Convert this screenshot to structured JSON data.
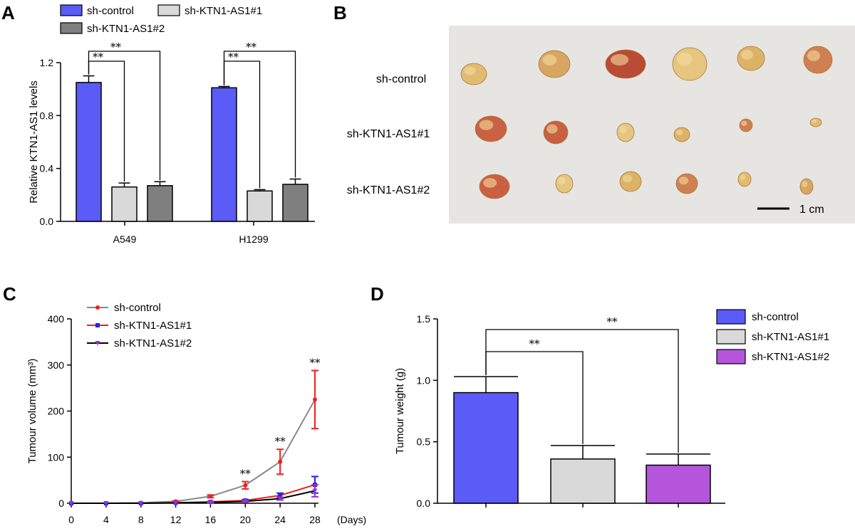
{
  "panels": {
    "A": "A",
    "B": "B",
    "C": "C",
    "D": "D"
  },
  "colors": {
    "sh_control_bar": "#5b5bf7",
    "sh1_bar": "#d9d9d9",
    "sh2_bar_A": "#7f7f7f",
    "sh2_bar_D": "#b455dc",
    "line_control": "#888888",
    "line_sh1": "#ee2020",
    "line_sh2": "#000000",
    "marker_sh1": "#2222ee",
    "marker_sh2": "#9933cc"
  },
  "panel_b": {
    "rows": [
      "sh-control",
      "sh-KTN1-AS1#1",
      "sh-KTN1-AS1#2"
    ],
    "scale_label": "1 cm"
  },
  "chart_data": [
    {
      "panel": "A",
      "type": "bar",
      "title": "",
      "ylabel": "Relative KTN1-AS1 levels",
      "xlabel": "",
      "ylim": [
        0,
        1.2
      ],
      "yticks": [
        "0.0",
        "0.4",
        "0.8",
        "1.2"
      ],
      "categories": [
        "A549",
        "H1299"
      ],
      "series": [
        {
          "name": "sh-control",
          "values": [
            1.05,
            1.01
          ],
          "errors": [
            0.05,
            0.01
          ]
        },
        {
          "name": "sh-KTN1-AS1#1",
          "values": [
            0.26,
            0.23
          ],
          "errors": [
            0.03,
            0.01
          ]
        },
        {
          "name": "sh-KTN1-AS1#2",
          "values": [
            0.27,
            0.28
          ],
          "errors": [
            0.03,
            0.04
          ]
        }
      ],
      "significance": [
        "**",
        "**",
        "**",
        "**"
      ],
      "legend_position": "top"
    },
    {
      "panel": "C",
      "type": "line",
      "title": "",
      "ylabel": "Tumour volume (mm³)",
      "xlabel": "(Days)",
      "ylim": [
        0,
        400
      ],
      "yticks": [
        "0",
        "100",
        "200",
        "300",
        "400"
      ],
      "x": [
        0,
        4,
        8,
        12,
        16,
        20,
        24,
        28
      ],
      "xticks": [
        "0",
        "4",
        "8",
        "12",
        "16",
        "20",
        "24",
        "28"
      ],
      "series": [
        {
          "name": "sh-control",
          "values": [
            0,
            0,
            1,
            4,
            15,
            39,
            90,
            225
          ],
          "errors": [
            0,
            0,
            0,
            1,
            3,
            8,
            27,
            63
          ]
        },
        {
          "name": "sh-KTN1-AS1#1",
          "values": [
            0,
            0,
            0,
            1,
            3,
            6,
            17,
            40
          ],
          "errors": [
            0,
            0,
            0,
            0,
            1,
            2,
            5,
            18
          ]
        },
        {
          "name": "sh-KTN1-AS1#2",
          "values": [
            0,
            0,
            0,
            1,
            2,
            4,
            10,
            27
          ],
          "errors": [
            0,
            0,
            0,
            0,
            1,
            1,
            3,
            13
          ]
        }
      ],
      "significance": [
        {
          "x": 20,
          "label": "**"
        },
        {
          "x": 24,
          "label": "**"
        },
        {
          "x": 28,
          "label": "**"
        }
      ],
      "legend_position": "top-left"
    },
    {
      "panel": "D",
      "type": "bar",
      "title": "",
      "ylabel": "Tumour weight (g)",
      "xlabel": "",
      "ylim": [
        0,
        1.5
      ],
      "yticks": [
        "0.0",
        "0.5",
        "1.0",
        "1.5"
      ],
      "categories": [
        "sh-control",
        "sh-KTN1-AS1#1",
        "sh-KTN1-AS1#2"
      ],
      "values": [
        0.9,
        0.36,
        0.31
      ],
      "errors": [
        0.13,
        0.11,
        0.09
      ],
      "significance": [
        "**",
        "**"
      ],
      "legend_position": "top-right"
    }
  ]
}
